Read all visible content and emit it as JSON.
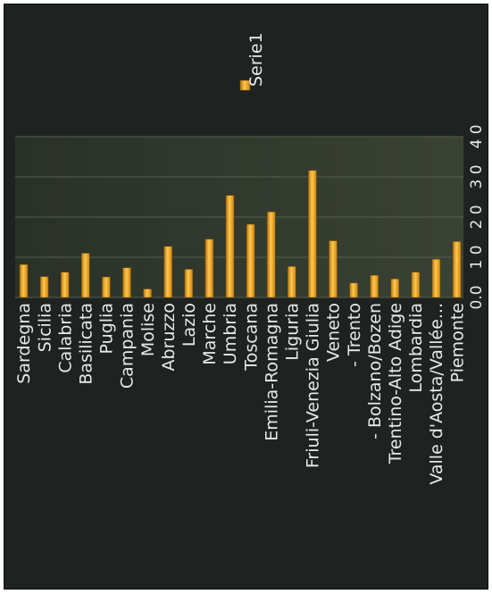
{
  "chart_data": {
    "type": "bar",
    "orientation": "rotated-90-ccw",
    "categories": [
      "Sardegna",
      "Sicilia",
      "Calabria",
      "Basilicata",
      "Puglia",
      "Campania",
      "Molise",
      "Abruzzo",
      "Lazio",
      "Marche",
      "Umbria",
      "Toscana",
      "Emilia-Romagna",
      "Liguria",
      "Friuli-Venezia Giulia",
      "Veneto",
      "- Trento",
      "- Bolzano/Bozen",
      "Trentino-Alto Adige",
      "Lombardia",
      "Valle d'Aosta/Vallée...",
      "Piemonte"
    ],
    "series": [
      {
        "name": "Serie1",
        "values": [
          8.2,
          5.2,
          6.3,
          11.0,
          5.1,
          7.4,
          2.1,
          12.7,
          7.0,
          14.5,
          25.4,
          18.2,
          21.3,
          7.7,
          31.6,
          14.1,
          3.6,
          5.5,
          4.6,
          6.3,
          9.5,
          13.9
        ]
      }
    ],
    "y_ticks": [
      "0.0",
      "1 0",
      "2 0",
      "3 0",
      "4 0"
    ],
    "ylim": [
      0,
      40
    ],
    "legend": "top-right",
    "colors": {
      "bar": "#f0a020",
      "bar_highlight": "#ffd77a",
      "bar_shadow": "#a86a08",
      "background": "#1e2321",
      "plot_area": "#323a2e",
      "text": "#e8e8e8"
    }
  }
}
